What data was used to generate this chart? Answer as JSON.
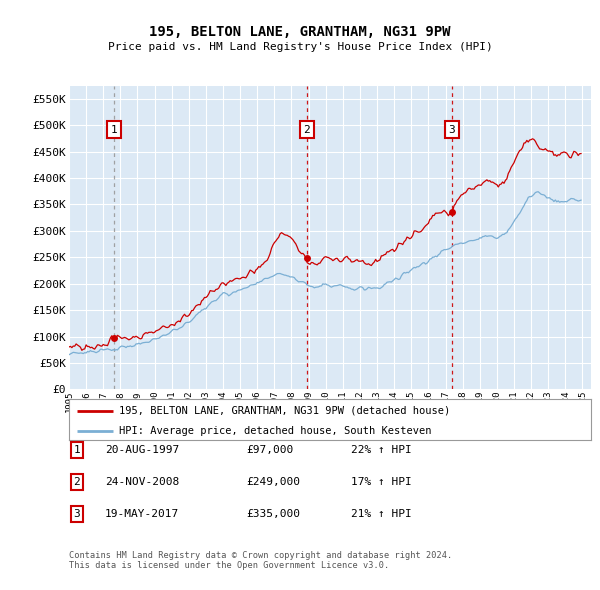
{
  "title": "195, BELTON LANE, GRANTHAM, NG31 9PW",
  "subtitle": "Price paid vs. HM Land Registry's House Price Index (HPI)",
  "yticks": [
    0,
    50000,
    100000,
    150000,
    200000,
    250000,
    300000,
    350000,
    400000,
    450000,
    500000,
    550000
  ],
  "ytick_labels": [
    "£0",
    "£50K",
    "£100K",
    "£150K",
    "£200K",
    "£250K",
    "£300K",
    "£350K",
    "£400K",
    "£450K",
    "£500K",
    "£550K"
  ],
  "xlim_start": 1995.0,
  "xlim_end": 2025.5,
  "ylim_min": 0,
  "ylim_max": 575000,
  "bg_color": "#dce9f5",
  "grid_color": "#ffffff",
  "sale_color": "#cc0000",
  "hpi_color": "#7bafd4",
  "sale_label": "195, BELTON LANE, GRANTHAM, NG31 9PW (detached house)",
  "hpi_label": "HPI: Average price, detached house, South Kesteven",
  "transactions": [
    {
      "num": 1,
      "date_x": 1997.64,
      "price": 97000,
      "pct": "22%",
      "date_str": "20-AUG-1997",
      "price_str": "£97,000",
      "line_color": "#999999"
    },
    {
      "num": 2,
      "date_x": 2008.9,
      "price": 249000,
      "pct": "17%",
      "date_str": "24-NOV-2008",
      "price_str": "£249,000",
      "line_color": "#cc0000"
    },
    {
      "num": 3,
      "date_x": 2017.38,
      "price": 335000,
      "pct": "21%",
      "date_str": "19-MAY-2017",
      "price_str": "£335,000",
      "line_color": "#cc0000"
    }
  ],
  "footer1": "Contains HM Land Registry data © Crown copyright and database right 2024.",
  "footer2": "This data is licensed under the Open Government Licence v3.0."
}
